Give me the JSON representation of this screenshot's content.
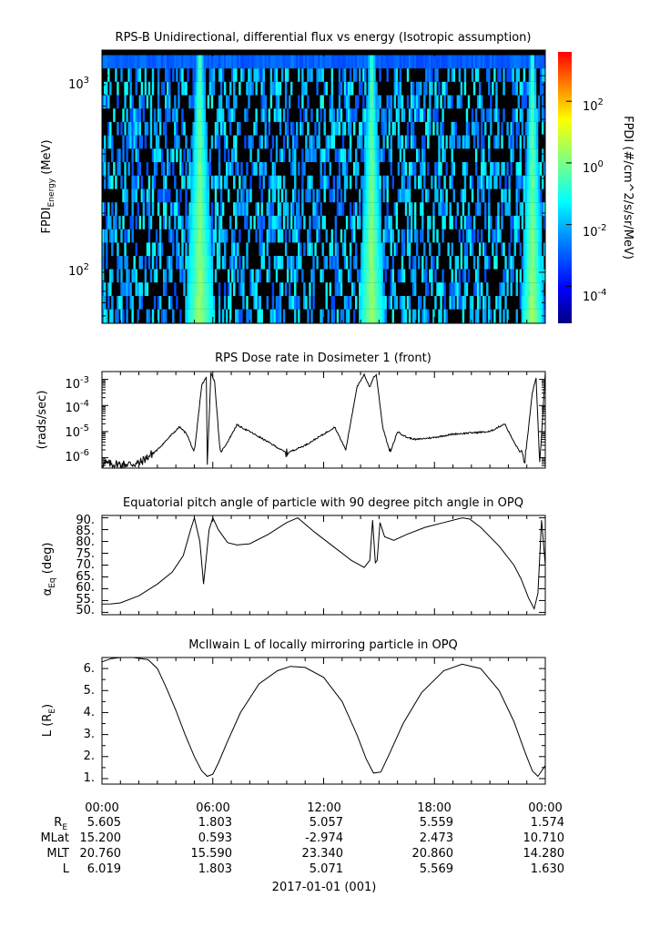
{
  "figure": {
    "date_label": "2017-01-01 (001)",
    "x_tick_labels": [
      "00:00",
      "06:00",
      "12:00",
      "18:00",
      "00:00"
    ]
  },
  "ephemeris": {
    "labels": {
      "re_main": "R",
      "re_sub": "E",
      "mlat": "MLat",
      "mlt": "MLT",
      "l": "L"
    },
    "re": [
      "5.605",
      "1.803",
      "5.057",
      "5.559",
      "1.574"
    ],
    "mlat": [
      "15.200",
      "0.593",
      "-2.974",
      "2.473",
      "10.710"
    ],
    "mlt": [
      "20.760",
      "15.590",
      "23.340",
      "20.860",
      "14.280"
    ],
    "l": [
      "6.019",
      "1.803",
      "5.071",
      "5.569",
      "1.630"
    ]
  },
  "colors": {
    "line": "#000000",
    "colormap": [
      "#00007f",
      "#0000ff",
      "#007fff",
      "#00ffff",
      "#7fff7f",
      "#ffff00",
      "#ff7f00",
      "#ff0000"
    ]
  },
  "chart_data": [
    {
      "type": "heatmap",
      "title": "RPS-B  Unidirectional, differential flux vs energy (Isotropic assumption)",
      "ylabel_main": "FPDI",
      "ylabel_sub": "Energy",
      "ylabel_unit": " (MeV)",
      "yscale": "log",
      "ylim": [
        55,
        1350
      ],
      "y_tick_labels": [
        {
          "base": "10",
          "exp": "3",
          "value": 1000
        },
        {
          "base": "10",
          "exp": "2",
          "value": 100
        }
      ],
      "x_range_hours": [
        0,
        24
      ],
      "energy_channels_mev": [
        60,
        70,
        82,
        96,
        112,
        131,
        153,
        179,
        210,
        245,
        287,
        336,
        393,
        460,
        538,
        629,
        736,
        861,
        1007,
        1178
      ],
      "high_flux_bands_hours": [
        [
          4.5,
          6.1
        ],
        [
          13.9,
          15.3
        ],
        [
          22.7,
          23.9
        ]
      ],
      "colorbar": {
        "label": "FPDI (#/cm^2/s/sr/MeV)",
        "scale": "log",
        "range_log10": [
          -5.2,
          3.6
        ],
        "tick_labels": [
          {
            "base": "10",
            "exp": "2",
            "log10": 2
          },
          {
            "base": "10",
            "exp": "0",
            "log10": 0
          },
          {
            "base": "10",
            "exp": "-2",
            "log10": -2
          },
          {
            "base": "10",
            "exp": "-4",
            "log10": -4
          }
        ]
      }
    },
    {
      "type": "line",
      "title": "RPS  Dose rate in Dosimeter 1 (front)",
      "ylabel": "(rads/sec)",
      "yscale": "log",
      "ylim": [
        4e-07,
        0.002
      ],
      "y_tick_labels": [
        {
          "base": "10",
          "exp": "-3",
          "value": 0.001
        },
        {
          "base": "10",
          "exp": "-4",
          "value": 0.0001
        },
        {
          "base": "10",
          "exp": "-5",
          "value": 1e-05
        },
        {
          "base": "10",
          "exp": "-6",
          "value": 1e-06
        }
      ],
      "x_hours": [
        0,
        1,
        2,
        3,
        3.8,
        4.2,
        4.6,
        5.0,
        5.4,
        5.65,
        5.7,
        5.9,
        6.1,
        6.4,
        6.8,
        7.3,
        8,
        9,
        10,
        11,
        12,
        12.6,
        13.2,
        13.8,
        14.2,
        14.5,
        14.7,
        14.85,
        15.2,
        15.6,
        16.0,
        16.5,
        17,
        18,
        19,
        20,
        21,
        21.8,
        22.3,
        22.9,
        23.3,
        23.5,
        23.7,
        24
      ],
      "values": [
        6e-07,
        5.5e-07,
        6e-07,
        2e-06,
        8e-06,
        1.5e-05,
        8e-06,
        1.5e-06,
        0.0006,
        0.0012,
        5e-07,
        0.0018,
        0.0008,
        1.5e-06,
        4e-06,
        1.8e-05,
        1e-05,
        4e-06,
        1.5e-06,
        3e-06,
        8e-06,
        1.5e-05,
        2e-06,
        0.0005,
        0.0015,
        0.0005,
        0.0012,
        0.0015,
        1.5e-05,
        1.5e-06,
        1e-05,
        6e-06,
        5e-06,
        6e-06,
        8e-06,
        9e-06,
        1e-05,
        2e-05,
        4e-06,
        8e-07,
        0.0003,
        0.0012,
        5e-07,
        0.0018
      ]
    },
    {
      "type": "line",
      "title": "Equatorial pitch angle of particle with 90 degree pitch angle in OPQ",
      "ylabel_main": "α",
      "ylabel_sub": "Eq",
      "ylabel_unit": " (deg)",
      "ylim": [
        49,
        91
      ],
      "y_ticks": [
        90,
        85,
        80,
        75,
        70,
        65,
        60,
        55,
        50
      ],
      "y_tick_labels": [
        "90.",
        "85.",
        "80.",
        "75.",
        "70.",
        "65.",
        "60.",
        "55.",
        "50."
      ],
      "x_hours": [
        0,
        0.5,
        1,
        2,
        3,
        3.8,
        4.4,
        4.8,
        5.0,
        5.3,
        5.5,
        5.8,
        6.0,
        6.3,
        6.8,
        7.3,
        8,
        9,
        10,
        10.6,
        11.5,
        12.5,
        13.5,
        14.2,
        14.5,
        14.65,
        14.8,
        14.9,
        15.05,
        15.3,
        15.8,
        16.5,
        17.5,
        18.5,
        19.5,
        19.9,
        20.5,
        21.5,
        22.3,
        22.7,
        23.1,
        23.4,
        23.6,
        23.8,
        24
      ],
      "values": [
        53.5,
        53.6,
        54,
        57,
        62,
        67,
        74,
        85,
        90,
        80,
        62,
        85,
        90,
        85,
        79.5,
        78.5,
        79,
        83,
        88,
        90,
        84,
        78,
        72,
        69,
        72,
        89,
        71,
        72,
        88,
        82,
        80.5,
        83,
        86,
        88,
        90,
        89.5,
        86,
        78,
        70,
        64,
        56,
        51.5,
        58,
        89,
        70
      ]
    },
    {
      "type": "line",
      "title": "McIlwain L of locally mirroring particle in OPQ",
      "ylabel_main": "L (R",
      "ylabel_sub": "E",
      "ylabel_unit": ")",
      "ylim": [
        0.75,
        6.5
      ],
      "y_ticks": [
        6,
        5,
        4,
        3,
        2,
        1
      ],
      "y_tick_labels": [
        "6.",
        "5.",
        "4.",
        "3.",
        "2.",
        "1."
      ],
      "x_hours": [
        0,
        0.5,
        1,
        1.7,
        2.5,
        3,
        3.5,
        4,
        4.5,
        5,
        5.4,
        5.7,
        6.0,
        6.3,
        6.8,
        7.5,
        8.5,
        9.5,
        10.2,
        11,
        12,
        13,
        13.8,
        14.3,
        14.7,
        15.1,
        15.6,
        16.3,
        17.3,
        18.5,
        19.5,
        20.5,
        21.5,
        22.3,
        22.9,
        23.3,
        23.6,
        24
      ],
      "values": [
        6.3,
        6.45,
        6.5,
        6.5,
        6.4,
        6.0,
        5.1,
        4.1,
        3.0,
        2.0,
        1.35,
        1.1,
        1.2,
        1.7,
        2.7,
        4.0,
        5.3,
        5.9,
        6.1,
        6.05,
        5.6,
        4.5,
        3.0,
        1.9,
        1.25,
        1.3,
        2.2,
        3.5,
        4.9,
        5.9,
        6.2,
        6.0,
        5.0,
        3.6,
        2.2,
        1.35,
        1.1,
        1.6
      ]
    }
  ]
}
